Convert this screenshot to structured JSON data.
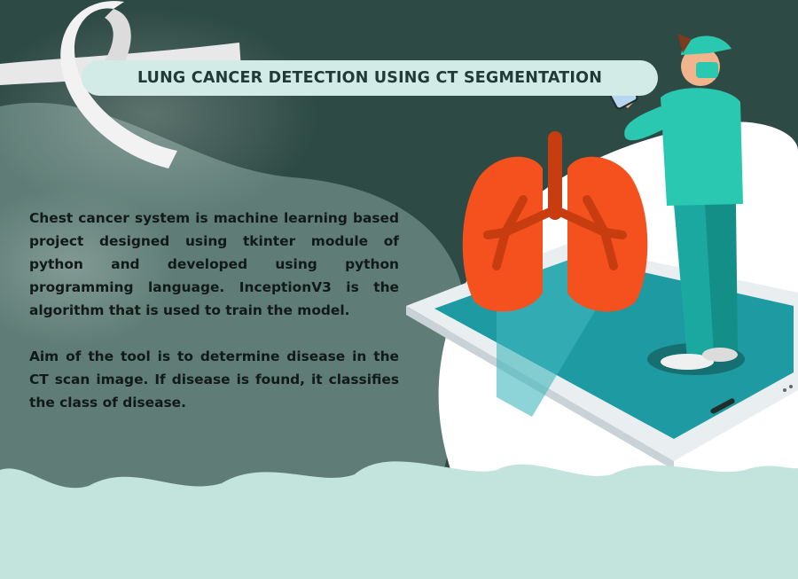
{
  "header": {
    "title": "LUNG CANCER DETECTION USING CT SEGMENTATION"
  },
  "description": {
    "paragraph_1": "Chest cancer system is machine learning based project designed using tkinter module of python and developed using python programming language. InceptionV3 is the algorithm that is used to train the model.",
    "paragraph_2": "Aim of the tool is to determine disease in the CT scan image. If disease is found, it classifies the class of disease."
  },
  "illustration": {
    "icons": [
      "awareness-ribbon-icon",
      "lungs-icon",
      "smartphone-icon",
      "doctor-figure"
    ]
  },
  "colors": {
    "background_dark": "#2e4a44",
    "blob_mid": "#5f7d76",
    "cloud_light": "#c3e4dd",
    "lungs_orange": "#f4511e",
    "trachea_red": "#c73d0f",
    "scrub_teal": "#2ac8b0",
    "phone_screen": "#1e9aa2"
  }
}
